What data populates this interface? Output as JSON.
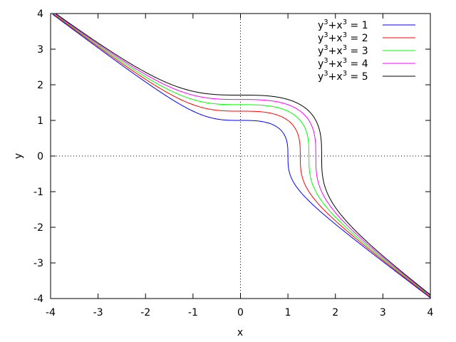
{
  "chart_data": {
    "type": "line",
    "title": "",
    "xlabel": "x",
    "ylabel": "y",
    "xlim": [
      -4,
      4
    ],
    "ylim": [
      -4,
      4
    ],
    "x_ticks": [
      -4,
      -3,
      -2,
      -1,
      0,
      1,
      2,
      3,
      4
    ],
    "y_ticks": [
      -4,
      -3,
      -2,
      -1,
      0,
      1,
      2,
      3,
      4
    ],
    "grid": false,
    "zero_axes": "dotted",
    "legend_position": "top-right",
    "series": [
      {
        "label_base": "y",
        "label_exp1": "3",
        "label_mid": "+x",
        "label_exp2": "3",
        "label_rhs": " = 1",
        "c": 1,
        "color": "#0000ff"
      },
      {
        "label_base": "y",
        "label_exp1": "3",
        "label_mid": "+x",
        "label_exp2": "3",
        "label_rhs": " = 2",
        "c": 2,
        "color": "#ff0000"
      },
      {
        "label_base": "y",
        "label_exp1": "3",
        "label_mid": "+x",
        "label_exp2": "3",
        "label_rhs": " = 3",
        "c": 3,
        "color": "#00ff00"
      },
      {
        "label_base": "y",
        "label_exp1": "3",
        "label_mid": "+x",
        "label_exp2": "3",
        "label_rhs": " = 4",
        "c": 4,
        "color": "#ff00ff"
      },
      {
        "label_base": "y",
        "label_exp1": "3",
        "label_mid": "+x",
        "label_exp2": "3",
        "label_rhs": " = 5",
        "c": 5,
        "color": "#000000"
      }
    ]
  }
}
